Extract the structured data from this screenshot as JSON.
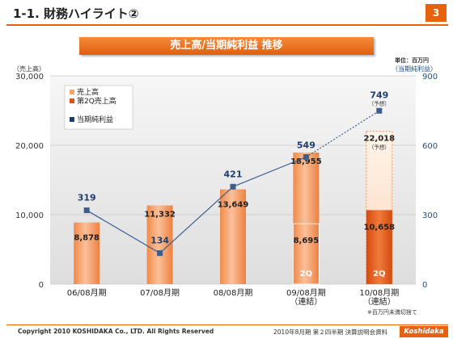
{
  "header": {
    "title": "1-1. 財務ハイライト②",
    "page_number": "3"
  },
  "chart_title": "売上高/当期純利益 推移",
  "unit_note": "単位：百万円",
  "right_axis_label": "（当期純利益）",
  "left_axis_label": "（売上高）",
  "round_note": "※百万円未満切捨て",
  "footer": {
    "copyright": "Copyright 2010 KOSHIDAKA Co., LTD. All Rights Reserved",
    "doc_name": "2010年8月期 第２四半期 決算説明会資料",
    "brand": "Koshidaka"
  },
  "colors": {
    "accent": "#e8620e",
    "bar_light": "#f5a06a",
    "bar_dark": "#e0541a",
    "line": "#1f3e6e",
    "line_point": "#3d5e8c",
    "plot_bg": "#e9e9e9"
  },
  "chart_data": {
    "type": "bar",
    "categories": [
      "06/08月期",
      "07/08月期",
      "08/08月期",
      "09/08月期\n（連結）",
      "10/08月期\n（連結）"
    ],
    "category_lines": [
      [
        "06/08月期"
      ],
      [
        "07/08月期"
      ],
      [
        "08/08月期"
      ],
      [
        "09/08月期",
        "（連結）"
      ],
      [
        "10/08月期",
        "（連結）"
      ]
    ],
    "legend": [
      "売上高",
      "第2Q売上高",
      "当期純利益"
    ],
    "sales": [
      8878,
      11332,
      13649,
      18955,
      22018
    ],
    "sales_labels": [
      "8,878",
      "11,332",
      "13,649",
      "18,955",
      "22,018"
    ],
    "sales_forecast_flags": [
      false,
      false,
      false,
      false,
      true
    ],
    "q2_sales": [
      null,
      null,
      null,
      8695,
      10658
    ],
    "q2_labels": [
      "",
      "",
      "",
      "8,695",
      "10,658"
    ],
    "q2_tag": "2Q",
    "net_income": [
      319,
      134,
      421,
      549,
      749
    ],
    "net_income_labels": [
      "319",
      "134",
      "421",
      "549",
      "749"
    ],
    "net_income_forecast_flags": [
      false,
      false,
      false,
      false,
      true
    ],
    "forecast_tag": "（予想）",
    "left_axis": {
      "min": 0,
      "max": 30000,
      "ticks": [
        0,
        10000,
        20000,
        30000
      ],
      "tick_labels": [
        "0",
        "10,000",
        "20,000",
        "30,000"
      ]
    },
    "right_axis": {
      "min": 0,
      "max": 900,
      "ticks": [
        0,
        300,
        600,
        900
      ],
      "tick_labels": [
        "0",
        "300",
        "600",
        "900"
      ]
    }
  }
}
